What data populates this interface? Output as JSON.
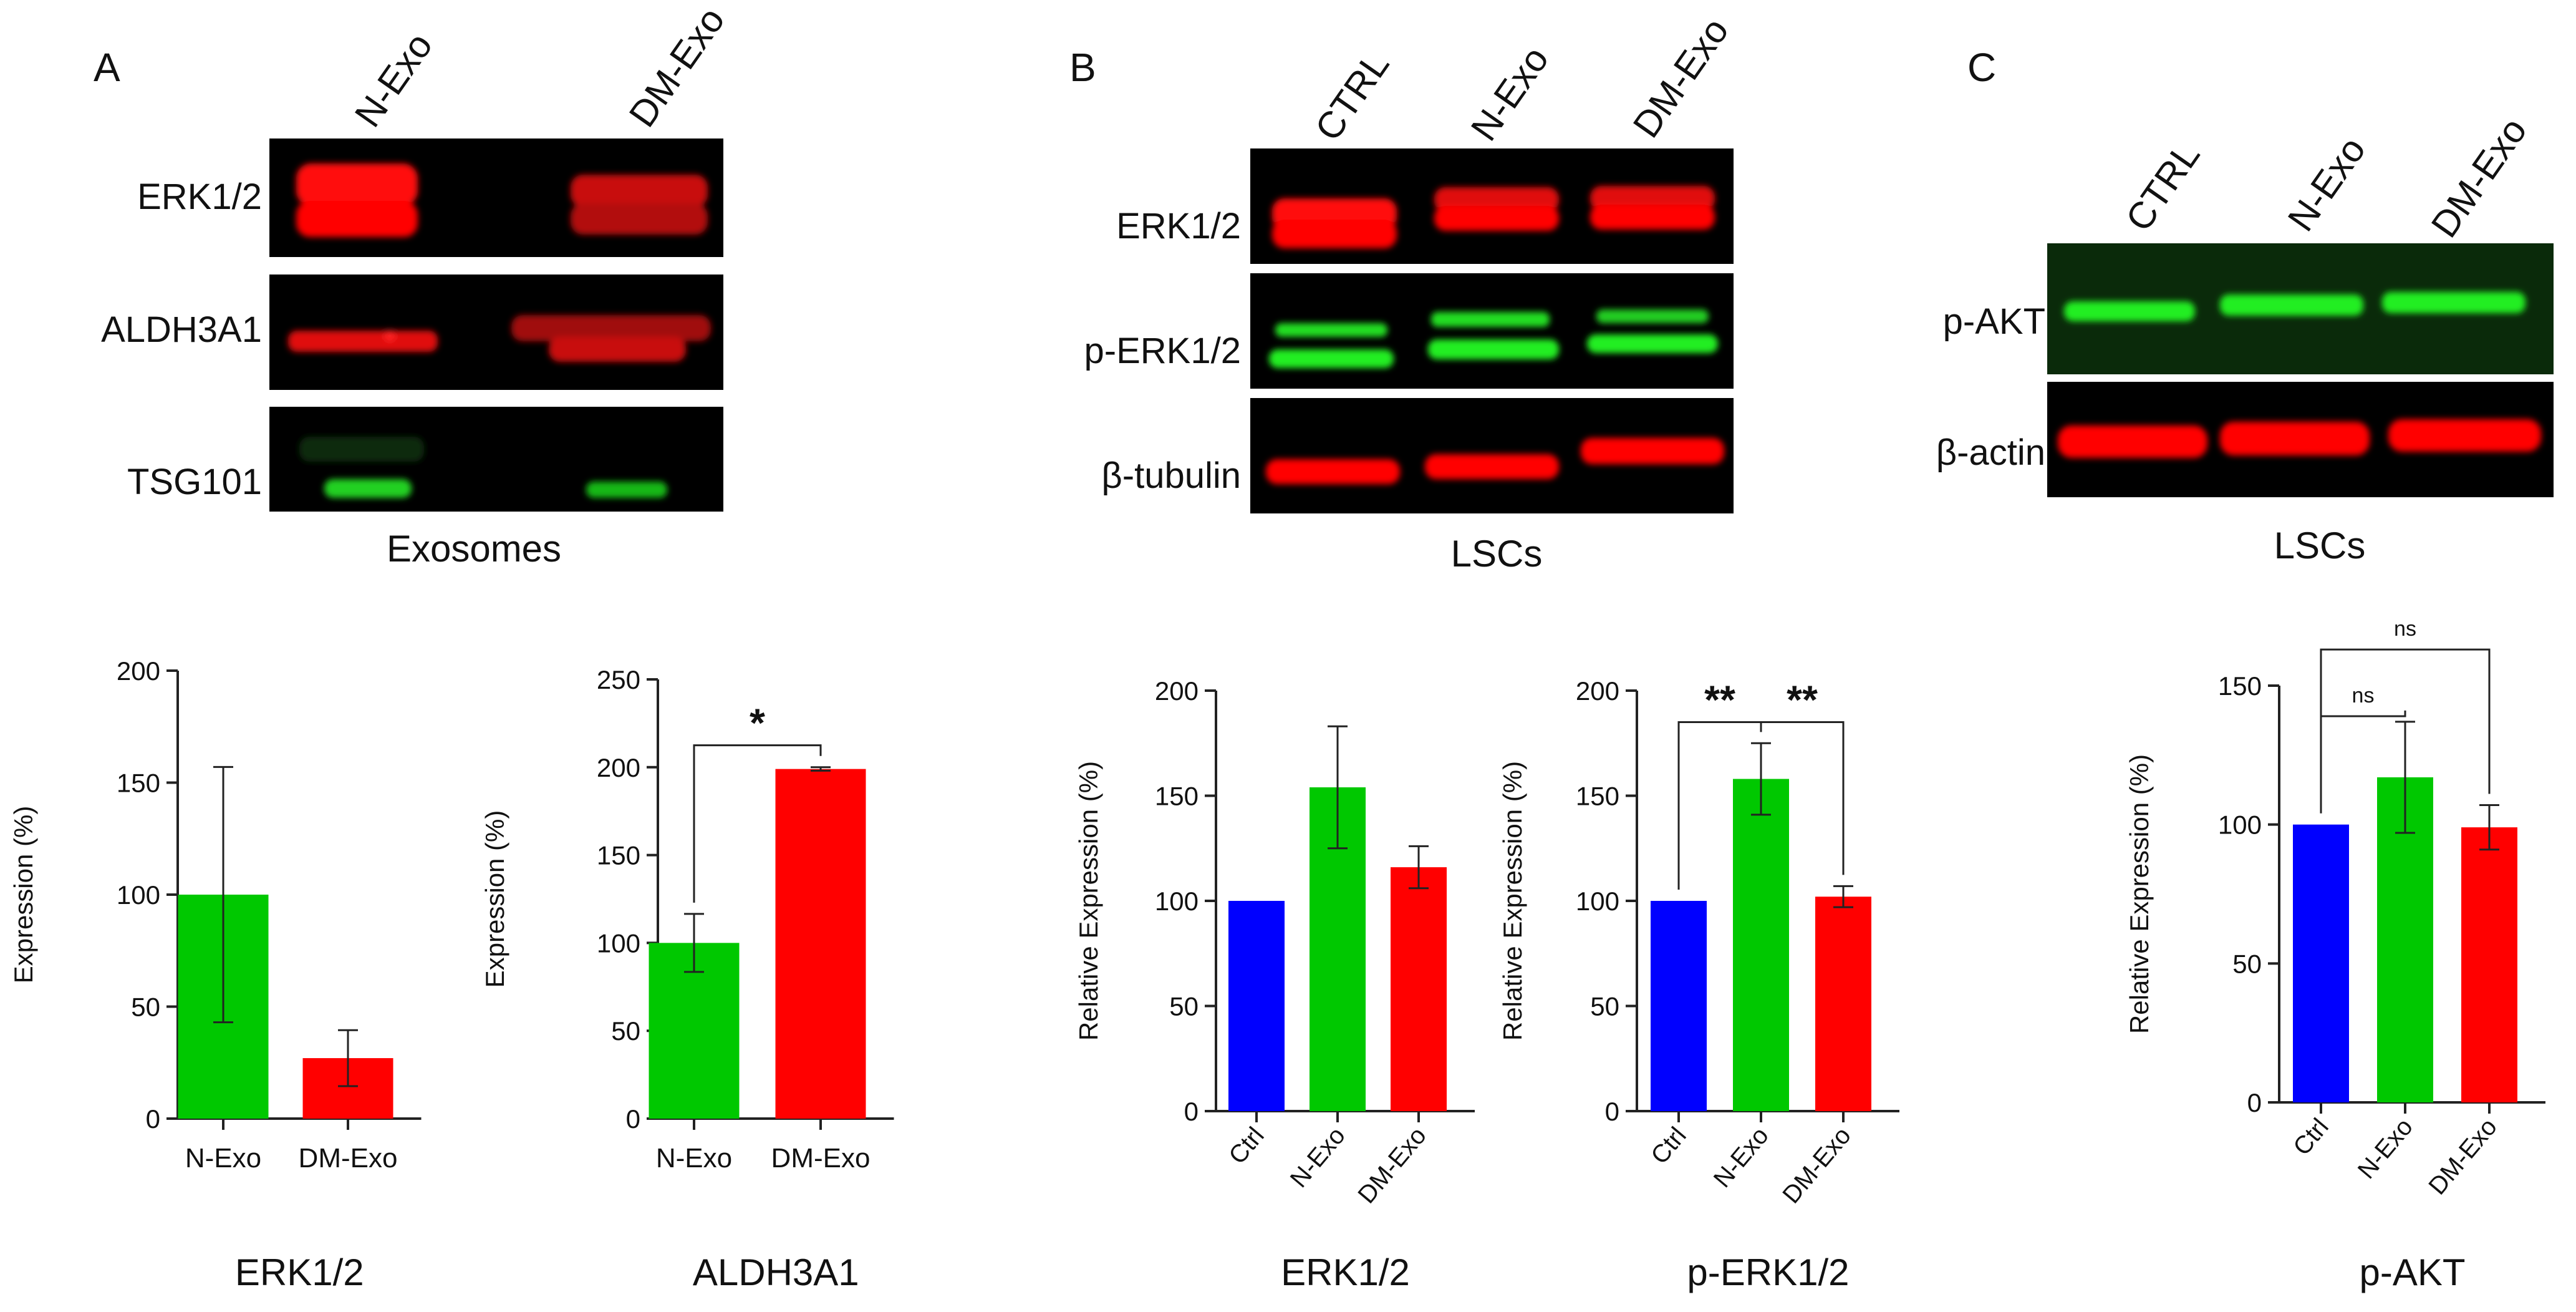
{
  "panels": [
    {
      "letter": "A",
      "section": "Exosomes",
      "lanes": [
        "N-Exo",
        "DM-Exo"
      ],
      "blots": [
        {
          "label": "ERK1/2",
          "signal": "red"
        },
        {
          "label": "ALDH3A1",
          "signal": "red"
        },
        {
          "label": "TSG101",
          "signal": "green"
        }
      ]
    },
    {
      "letter": "B",
      "section": "LSCs",
      "lanes": [
        "CTRL",
        "N-Exo",
        "DM-Exo"
      ],
      "blots": [
        {
          "label": "ERK1/2",
          "signal": "red"
        },
        {
          "label": "p-ERK1/2",
          "signal": "green"
        },
        {
          "label": "β-tubulin",
          "signal": "red"
        }
      ]
    },
    {
      "letter": "C",
      "section": "LSCs",
      "lanes": [
        "CTRL",
        "N-Exo",
        "DM-Exo"
      ],
      "blots": [
        {
          "label": "p-AKT",
          "signal": "green"
        },
        {
          "label": "β-actin",
          "signal": "red"
        }
      ]
    }
  ],
  "colors": {
    "ctrl": "#0000ff",
    "n_exo": "#00c800",
    "dm_exo": "#ff0000",
    "blot_bg": "#000000"
  },
  "chart_data": [
    {
      "type": "bar",
      "title": "ERK1/2",
      "ylabel": "Expression (%)",
      "categories": [
        "N-Exo",
        "DM-Exo"
      ],
      "values": [
        100,
        27
      ],
      "errors": [
        57,
        12.5
      ],
      "bar_colors": [
        "#00c800",
        "#ff0000"
      ],
      "ylim": [
        0,
        200
      ],
      "yticks": [
        0,
        50,
        100,
        150,
        200
      ],
      "grid": false,
      "rotated_labels": false,
      "annotations": []
    },
    {
      "type": "bar",
      "title": "ALDH3A1",
      "ylabel": "Expression (%)",
      "categories": [
        "N-Exo",
        "DM-Exo"
      ],
      "values": [
        100,
        199
      ],
      "errors": [
        16.5,
        1
      ],
      "bar_colors": [
        "#00c800",
        "#ff0000"
      ],
      "ylim": [
        0,
        250
      ],
      "yticks": [
        0,
        50,
        100,
        150,
        200,
        250
      ],
      "grid": false,
      "rotated_labels": false,
      "annotations": [
        {
          "from": 0,
          "to": 1,
          "text": "*"
        }
      ]
    },
    {
      "type": "bar",
      "title": "ERK1/2",
      "ylabel": "Relative Expression (%)",
      "categories": [
        "Ctrl",
        "N-Exo",
        "DM-Exo"
      ],
      "values": [
        100,
        154,
        116
      ],
      "errors": [
        0,
        29,
        10
      ],
      "bar_colors": [
        "#0000ff",
        "#00c800",
        "#ff0000"
      ],
      "ylim": [
        0,
        200
      ],
      "yticks": [
        0,
        50,
        100,
        150,
        200
      ],
      "grid": false,
      "rotated_labels": true,
      "annotations": []
    },
    {
      "type": "bar",
      "title": "p-ERK1/2",
      "ylabel": "Relative Expression (%)",
      "categories": [
        "Ctrl",
        "N-Exo",
        "DM-Exo"
      ],
      "values": [
        100,
        158,
        102
      ],
      "errors": [
        0,
        17,
        5
      ],
      "bar_colors": [
        "#0000ff",
        "#00c800",
        "#ff0000"
      ],
      "ylim": [
        0,
        200
      ],
      "yticks": [
        0,
        50,
        100,
        150,
        200
      ],
      "grid": false,
      "rotated_labels": true,
      "annotations": [
        {
          "from": 0,
          "to": 1,
          "text": "**"
        },
        {
          "from": 1,
          "to": 2,
          "text": "**"
        }
      ]
    },
    {
      "type": "bar",
      "title": "p-AKT",
      "ylabel": "Relative Expression (%)",
      "categories": [
        "Ctrl",
        "N-Exo",
        "DM-Exo"
      ],
      "values": [
        100,
        117,
        99
      ],
      "errors": [
        0,
        20,
        8
      ],
      "bar_colors": [
        "#0000ff",
        "#00c800",
        "#ff0000"
      ],
      "ylim": [
        0,
        150
      ],
      "yticks": [
        0,
        50,
        100,
        150
      ],
      "grid": false,
      "rotated_labels": true,
      "annotations": [
        {
          "from": 0,
          "to": 1,
          "text": "ns"
        },
        {
          "from": 0,
          "to": 2,
          "text": "ns"
        }
      ]
    }
  ]
}
